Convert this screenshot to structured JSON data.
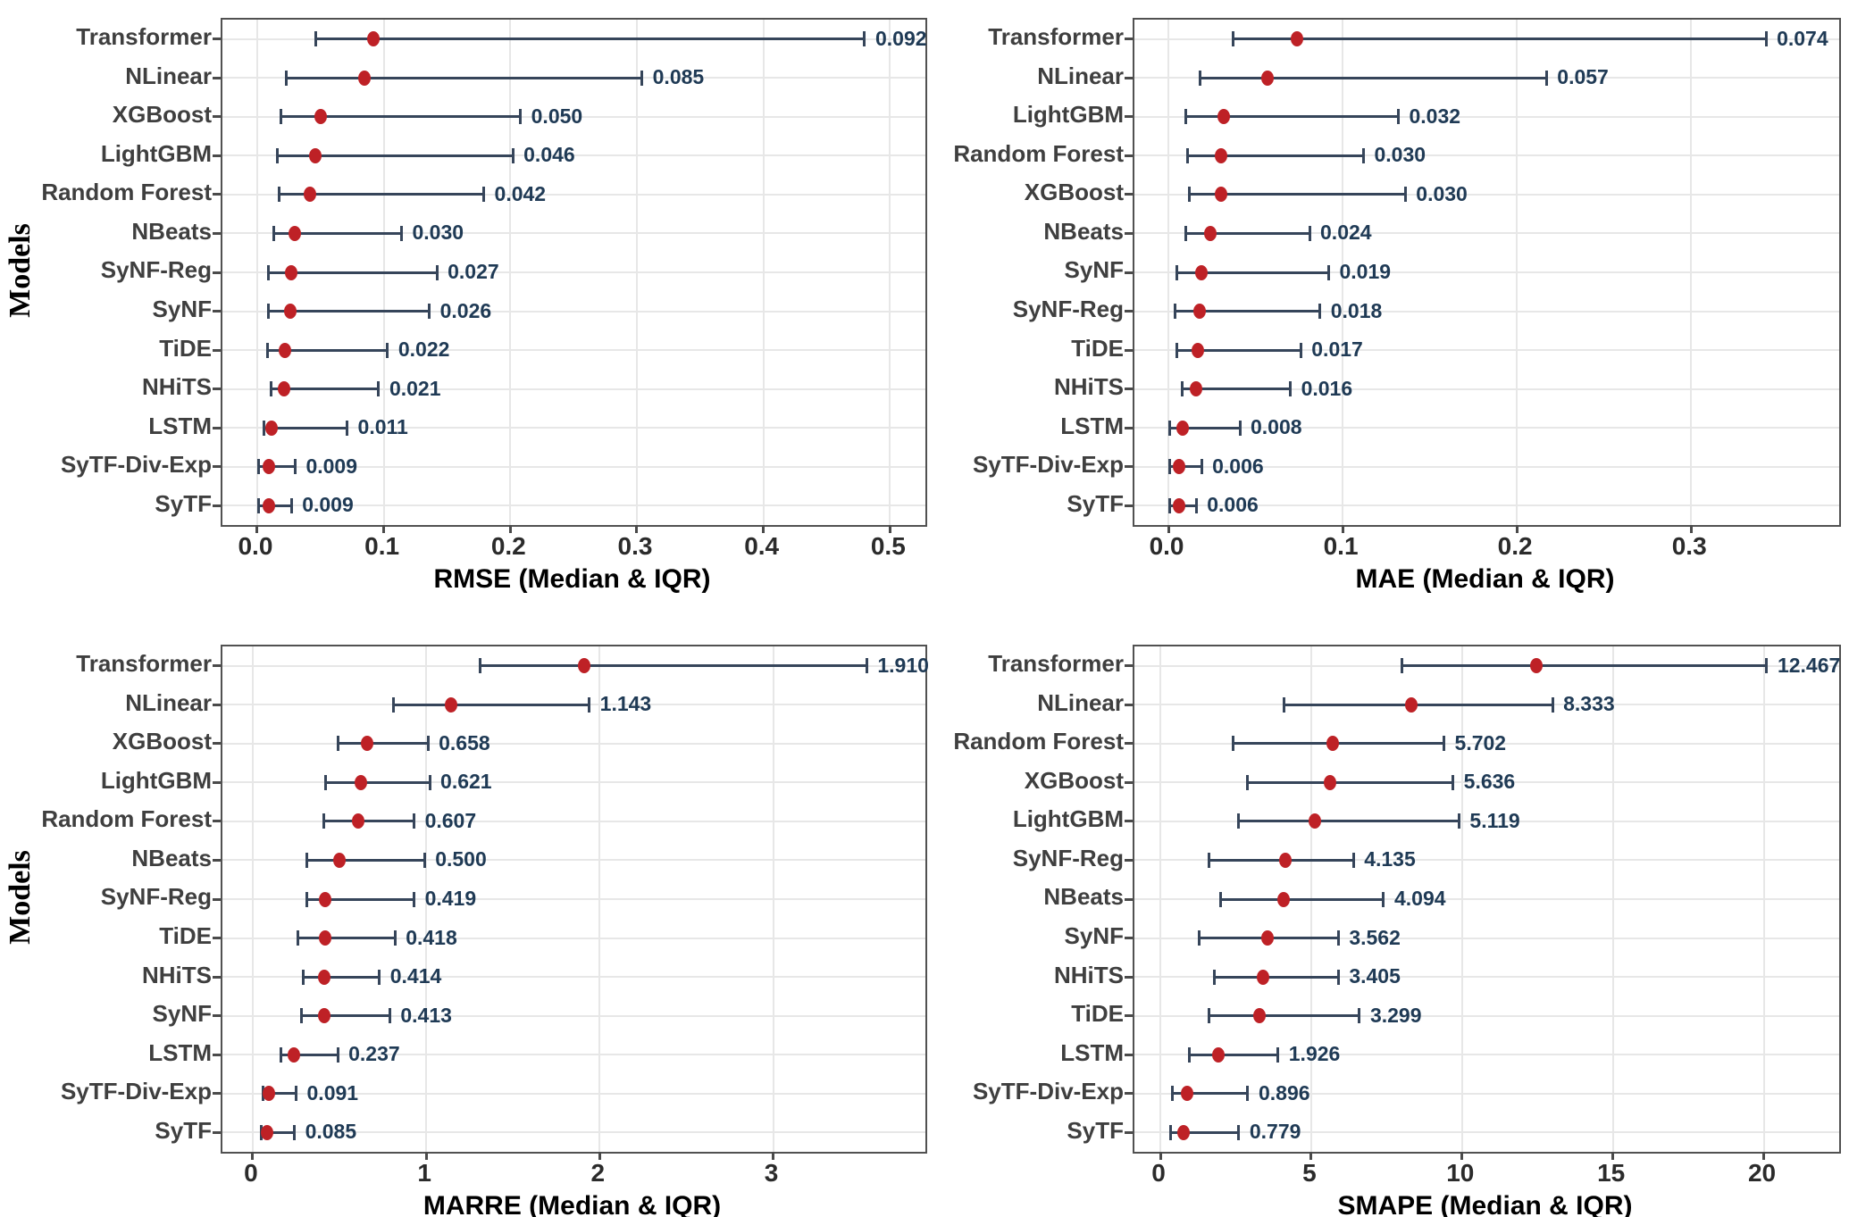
{
  "styles": {
    "dot_color": "#BE2126",
    "whisker_color": "#36455A",
    "value_label_color": "#1F3A55",
    "model_label_color": "#3F3F3F",
    "axis_text_color": "#2B2B2B",
    "grid_color": "#E7E7E7",
    "border_color": "#515151",
    "tick_mark_color": "#4A4A4A",
    "background": "#FFFFFF"
  },
  "chart_data": [
    {
      "type": "dot_whisker",
      "metric": "RMSE",
      "xlabel": "RMSE (Median & IQR)",
      "ylabel": "Models",
      "xlim": [
        -0.0275,
        0.528
      ],
      "grid": true,
      "tick_values": [
        0,
        0.1,
        0.2,
        0.3,
        0.4,
        0.5
      ],
      "tick_labels": [
        "0.0",
        "0.1",
        "0.2",
        "0.3",
        "0.4",
        "0.5"
      ],
      "rows": [
        {
          "model": "Transformer",
          "low": 0.046,
          "median": 0.092,
          "high": 0.48,
          "label": "0.092"
        },
        {
          "model": "NLinear",
          "low": 0.023,
          "median": 0.085,
          "high": 0.304,
          "label": "0.085"
        },
        {
          "model": "XGBoost",
          "low": 0.019,
          "median": 0.05,
          "high": 0.208,
          "label": "0.050"
        },
        {
          "model": "LightGBM",
          "low": 0.016,
          "median": 0.046,
          "high": 0.202,
          "label": "0.046"
        },
        {
          "model": "Random Forest",
          "low": 0.017,
          "median": 0.042,
          "high": 0.179,
          "label": "0.042"
        },
        {
          "model": "NBeats",
          "low": 0.013,
          "median": 0.03,
          "high": 0.114,
          "label": "0.030"
        },
        {
          "model": "SyNF-Reg",
          "low": 0.009,
          "median": 0.027,
          "high": 0.142,
          "label": "0.027"
        },
        {
          "model": "SyNF",
          "low": 0.009,
          "median": 0.026,
          "high": 0.136,
          "label": "0.026"
        },
        {
          "model": "TiDE",
          "low": 0.008,
          "median": 0.022,
          "high": 0.103,
          "label": "0.022"
        },
        {
          "model": "NHiTS",
          "low": 0.011,
          "median": 0.021,
          "high": 0.096,
          "label": "0.021"
        },
        {
          "model": "LSTM",
          "low": 0.005,
          "median": 0.011,
          "high": 0.071,
          "label": "0.011"
        },
        {
          "model": "SyTF-Div-Exp",
          "low": 0.001,
          "median": 0.009,
          "high": 0.03,
          "label": "0.009"
        },
        {
          "model": "SyTF",
          "low": 0.001,
          "median": 0.009,
          "high": 0.027,
          "label": "0.009"
        }
      ]
    },
    {
      "type": "dot_whisker",
      "metric": "MAE",
      "xlabel": "MAE (Median & IQR)",
      "ylabel": null,
      "xlim": [
        -0.0195,
        0.385
      ],
      "grid": true,
      "tick_values": [
        0,
        0.1,
        0.2,
        0.3
      ],
      "tick_labels": [
        "0.0",
        "0.1",
        "0.2",
        "0.3"
      ],
      "rows": [
        {
          "model": "Transformer",
          "low": 0.037,
          "median": 0.074,
          "high": 0.343,
          "label": "0.074"
        },
        {
          "model": "NLinear",
          "low": 0.018,
          "median": 0.057,
          "high": 0.217,
          "label": "0.057"
        },
        {
          "model": "LightGBM",
          "low": 0.01,
          "median": 0.032,
          "high": 0.132,
          "label": "0.032"
        },
        {
          "model": "Random Forest",
          "low": 0.011,
          "median": 0.03,
          "high": 0.112,
          "label": "0.030"
        },
        {
          "model": "XGBoost",
          "low": 0.012,
          "median": 0.03,
          "high": 0.136,
          "label": "0.030"
        },
        {
          "model": "NBeats",
          "low": 0.01,
          "median": 0.024,
          "high": 0.081,
          "label": "0.024"
        },
        {
          "model": "SyNF",
          "low": 0.005,
          "median": 0.019,
          "high": 0.092,
          "label": "0.019"
        },
        {
          "model": "SyNF-Reg",
          "low": 0.004,
          "median": 0.018,
          "high": 0.087,
          "label": "0.018"
        },
        {
          "model": "TiDE",
          "low": 0.005,
          "median": 0.017,
          "high": 0.076,
          "label": "0.017"
        },
        {
          "model": "NHiTS",
          "low": 0.008,
          "median": 0.016,
          "high": 0.07,
          "label": "0.016"
        },
        {
          "model": "LSTM",
          "low": 0.001,
          "median": 0.008,
          "high": 0.041,
          "label": "0.008"
        },
        {
          "model": "SyTF-Div-Exp",
          "low": 0.0005,
          "median": 0.006,
          "high": 0.019,
          "label": "0.006"
        },
        {
          "model": "SyTF",
          "low": 0.0005,
          "median": 0.006,
          "high": 0.016,
          "label": "0.006"
        }
      ]
    },
    {
      "type": "dot_whisker",
      "metric": "MARRE",
      "xlabel": "MARRE (Median & IQR)",
      "ylabel": "Models",
      "xlim": [
        -0.175,
        3.878
      ],
      "grid": true,
      "tick_values": [
        0,
        1,
        2,
        3
      ],
      "tick_labels": [
        "0",
        "1",
        "2",
        "3"
      ],
      "rows": [
        {
          "model": "Transformer",
          "low": 1.31,
          "median": 1.91,
          "high": 3.54,
          "label": "1.910"
        },
        {
          "model": "NLinear",
          "low": 0.81,
          "median": 1.143,
          "high": 1.94,
          "label": "1.143"
        },
        {
          "model": "XGBoost",
          "low": 0.49,
          "median": 0.658,
          "high": 1.01,
          "label": "0.658"
        },
        {
          "model": "LightGBM",
          "low": 0.42,
          "median": 0.621,
          "high": 1.02,
          "label": "0.621"
        },
        {
          "model": "Random Forest",
          "low": 0.41,
          "median": 0.607,
          "high": 0.93,
          "label": "0.607"
        },
        {
          "model": "NBeats",
          "low": 0.31,
          "median": 0.5,
          "high": 0.99,
          "label": "0.500"
        },
        {
          "model": "SyNF-Reg",
          "low": 0.31,
          "median": 0.419,
          "high": 0.93,
          "label": "0.419"
        },
        {
          "model": "TiDE",
          "low": 0.26,
          "median": 0.418,
          "high": 0.82,
          "label": "0.418"
        },
        {
          "model": "NHiTS",
          "low": 0.29,
          "median": 0.414,
          "high": 0.73,
          "label": "0.414"
        },
        {
          "model": "SyNF",
          "low": 0.28,
          "median": 0.413,
          "high": 0.79,
          "label": "0.413"
        },
        {
          "model": "LSTM",
          "low": 0.16,
          "median": 0.237,
          "high": 0.49,
          "label": "0.237"
        },
        {
          "model": "SyTF-Div-Exp",
          "low": 0.06,
          "median": 0.091,
          "high": 0.25,
          "label": "0.091"
        },
        {
          "model": "SyTF",
          "low": 0.05,
          "median": 0.085,
          "high": 0.24,
          "label": "0.085"
        }
      ]
    },
    {
      "type": "dot_whisker",
      "metric": "SMAPE",
      "xlabel": "SMAPE (Median & IQR)",
      "ylabel": null,
      "xlim": [
        -0.86,
        22.5
      ],
      "grid": true,
      "tick_values": [
        0,
        5,
        10,
        15,
        20
      ],
      "tick_labels": [
        "0",
        "5",
        "10",
        "15",
        "20"
      ],
      "rows": [
        {
          "model": "Transformer",
          "low": 8.0,
          "median": 12.467,
          "high": 20.1,
          "label": "12.467"
        },
        {
          "model": "NLinear",
          "low": 4.1,
          "median": 8.333,
          "high": 13.0,
          "label": "8.333"
        },
        {
          "model": "Random Forest",
          "low": 2.4,
          "median": 5.702,
          "high": 9.4,
          "label": "5.702"
        },
        {
          "model": "XGBoost",
          "low": 2.9,
          "median": 5.636,
          "high": 9.7,
          "label": "5.636"
        },
        {
          "model": "LightGBM",
          "low": 2.6,
          "median": 5.119,
          "high": 9.9,
          "label": "5.119"
        },
        {
          "model": "SyNF-Reg",
          "low": 1.6,
          "median": 4.135,
          "high": 6.4,
          "label": "4.135"
        },
        {
          "model": "NBeats",
          "low": 2.0,
          "median": 4.094,
          "high": 7.4,
          "label": "4.094"
        },
        {
          "model": "SyNF",
          "low": 1.3,
          "median": 3.562,
          "high": 5.9,
          "label": "3.562"
        },
        {
          "model": "NHiTS",
          "low": 1.8,
          "median": 3.405,
          "high": 5.9,
          "label": "3.405"
        },
        {
          "model": "TiDE",
          "low": 1.6,
          "median": 3.299,
          "high": 6.6,
          "label": "3.299"
        },
        {
          "model": "LSTM",
          "low": 0.95,
          "median": 1.926,
          "high": 3.9,
          "label": "1.926"
        },
        {
          "model": "SyTF-Div-Exp",
          "low": 0.4,
          "median": 0.896,
          "high": 2.9,
          "label": "0.896"
        },
        {
          "model": "SyTF",
          "low": 0.35,
          "median": 0.779,
          "high": 2.6,
          "label": "0.779"
        }
      ]
    }
  ]
}
